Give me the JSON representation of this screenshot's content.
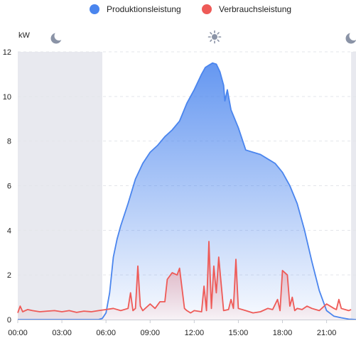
{
  "legend": {
    "production_label": "Produktionsleistung",
    "consumption_label": "Verbrauchsleistung"
  },
  "icons": {
    "night": "moon-icon",
    "day": "sun-icon"
  },
  "colors": {
    "production": "#4a85ee",
    "consumption": "#ee5a57",
    "night_band": "#e8e9ef",
    "icon": "#8a93a6"
  },
  "chart_data": {
    "type": "area",
    "y_unit_label": "kW",
    "ylim": [
      0,
      12
    ],
    "yticks": [
      0,
      2,
      4,
      6,
      8,
      10,
      12
    ],
    "xlim": [
      "00:00",
      "23:00"
    ],
    "xticks": [
      "00:00",
      "03:00",
      "06:00",
      "09:00",
      "12:00",
      "15:00",
      "18:00",
      "21:00"
    ],
    "grid": true,
    "legend_position": "top-center",
    "night_periods": [
      [
        "00:00",
        "05:45"
      ],
      [
        "22:40",
        "23:00"
      ]
    ],
    "series": [
      {
        "name": "Produktionsleistung",
        "x": [
          "00:00",
          "05:30",
          "05:45",
          "06:00",
          "06:15",
          "06:30",
          "06:45",
          "07:00",
          "07:30",
          "08:00",
          "08:30",
          "09:00",
          "09:30",
          "10:00",
          "10:30",
          "11:00",
          "11:30",
          "12:00",
          "12:30",
          "12:45",
          "13:00",
          "13:15",
          "13:30",
          "13:45",
          "14:00",
          "14:05",
          "14:15",
          "14:30",
          "15:00",
          "15:30",
          "16:00",
          "16:30",
          "17:00",
          "17:30",
          "18:00",
          "18:30",
          "19:00",
          "19:30",
          "20:00",
          "20:30",
          "21:00",
          "21:30",
          "22:00",
          "22:30",
          "23:00"
        ],
        "values": [
          0,
          0,
          0.05,
          0.3,
          1.2,
          2.8,
          3.6,
          4.2,
          5.2,
          6.3,
          7.0,
          7.5,
          7.8,
          8.2,
          8.5,
          8.9,
          9.7,
          10.3,
          11.0,
          11.3,
          11.4,
          11.5,
          11.45,
          11.1,
          10.5,
          9.8,
          10.3,
          9.4,
          8.6,
          7.6,
          7.5,
          7.4,
          7.2,
          7.0,
          6.6,
          6.0,
          5.2,
          4.0,
          2.6,
          1.3,
          0.4,
          0.15,
          0.08,
          0.02,
          0
        ]
      },
      {
        "name": "Verbrauchsleistung",
        "x": [
          "00:00",
          "00:10",
          "00:20",
          "00:40",
          "01:00",
          "01:30",
          "02:00",
          "02:30",
          "03:00",
          "03:30",
          "04:00",
          "04:30",
          "05:00",
          "05:30",
          "06:00",
          "06:30",
          "07:00",
          "07:30",
          "07:40",
          "07:50",
          "08:00",
          "08:10",
          "08:20",
          "08:30",
          "09:00",
          "09:20",
          "09:40",
          "10:00",
          "10:10",
          "10:30",
          "10:50",
          "11:00",
          "11:20",
          "11:30",
          "11:45",
          "12:00",
          "12:30",
          "12:40",
          "12:50",
          "13:00",
          "13:10",
          "13:20",
          "13:30",
          "13:40",
          "14:00",
          "14:20",
          "14:30",
          "14:40",
          "14:50",
          "15:00",
          "15:30",
          "16:00",
          "16:30",
          "17:00",
          "17:20",
          "17:40",
          "17:50",
          "18:00",
          "18:20",
          "18:30",
          "18:40",
          "18:50",
          "19:00",
          "19:20",
          "19:40",
          "20:00",
          "20:30",
          "21:00",
          "21:30",
          "21:40",
          "21:50",
          "22:00",
          "22:30",
          "22:40"
        ],
        "values": [
          0.3,
          0.6,
          0.35,
          0.45,
          0.4,
          0.35,
          0.38,
          0.4,
          0.35,
          0.4,
          0.32,
          0.38,
          0.35,
          0.4,
          0.45,
          0.5,
          0.4,
          0.5,
          1.2,
          0.4,
          0.5,
          2.4,
          0.6,
          0.4,
          0.7,
          0.5,
          0.8,
          0.8,
          1.8,
          2.1,
          2.0,
          2.3,
          0.5,
          0.4,
          0.3,
          0.4,
          0.35,
          1.5,
          0.4,
          3.5,
          0.5,
          2.4,
          1.2,
          2.8,
          0.4,
          0.45,
          0.9,
          0.5,
          2.7,
          0.5,
          0.4,
          0.3,
          0.35,
          0.5,
          0.45,
          0.9,
          0.4,
          2.2,
          2.0,
          0.6,
          1.0,
          0.4,
          0.5,
          0.45,
          0.6,
          0.5,
          0.4,
          0.7,
          0.5,
          0.45,
          0.9,
          0.5,
          0.4,
          0.45
        ]
      }
    ]
  }
}
